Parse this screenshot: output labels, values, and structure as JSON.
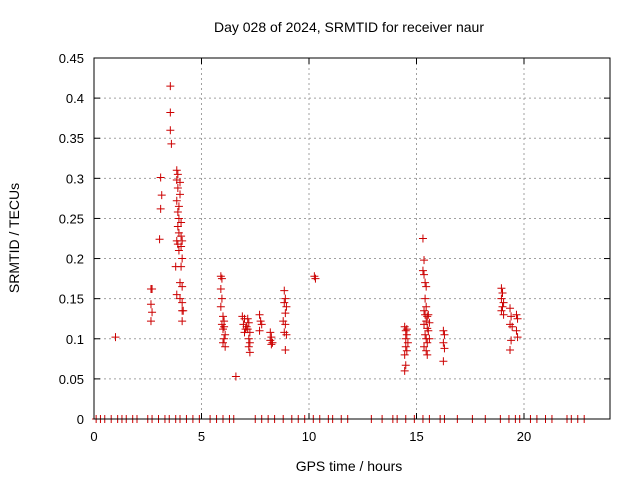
{
  "chart_data": {
    "type": "scatter",
    "title": "Day 028 of 2024, SRMTID for receiver naur",
    "xlabel": "GPS time / hours",
    "ylabel": "SRMTID / TECUs",
    "xlim": [
      0,
      24
    ],
    "ylim": [
      0,
      0.45
    ],
    "xticks": [
      0,
      5,
      10,
      15,
      20
    ],
    "yticks": [
      0,
      0.05,
      0.1,
      0.15,
      0.2,
      0.25,
      0.3,
      0.35,
      0.4,
      0.45
    ],
    "xtick_labels": [
      "0",
      "5",
      "10",
      "15",
      "20"
    ],
    "ytick_labels": [
      "0",
      "0.05",
      "0.1",
      "0.15",
      "0.2",
      "0.25",
      "0.3",
      "0.35",
      "0.4",
      "0.45"
    ],
    "grid": true,
    "marker": "+",
    "marker_color": "#cc0000",
    "series": [
      {
        "name": "SRMTID",
        "points": [
          [
            1.0,
            0.102
          ],
          [
            2.65,
            0.162
          ],
          [
            2.7,
            0.162
          ],
          [
            2.65,
            0.143
          ],
          [
            2.7,
            0.133
          ],
          [
            2.65,
            0.122
          ],
          [
            3.1,
            0.301
          ],
          [
            3.15,
            0.279
          ],
          [
            3.1,
            0.262
          ],
          [
            3.05,
            0.224
          ],
          [
            3.55,
            0.415
          ],
          [
            3.55,
            0.382
          ],
          [
            3.55,
            0.36
          ],
          [
            3.6,
            0.343
          ],
          [
            3.85,
            0.31
          ],
          [
            3.9,
            0.305
          ],
          [
            3.85,
            0.298
          ],
          [
            3.9,
            0.288
          ],
          [
            3.85,
            0.272
          ],
          [
            3.95,
            0.265
          ],
          [
            3.9,
            0.258
          ],
          [
            3.95,
            0.25
          ],
          [
            3.9,
            0.24
          ],
          [
            3.95,
            0.232
          ],
          [
            3.85,
            0.222
          ],
          [
            3.9,
            0.218
          ],
          [
            3.95,
            0.21
          ],
          [
            3.8,
            0.19
          ],
          [
            3.85,
            0.155
          ],
          [
            4.0,
            0.295
          ],
          [
            4.0,
            0.28
          ],
          [
            4.05,
            0.245
          ],
          [
            4.05,
            0.228
          ],
          [
            4.1,
            0.222
          ],
          [
            4.05,
            0.215
          ],
          [
            4.1,
            0.2
          ],
          [
            4.05,
            0.19
          ],
          [
            4.0,
            0.17
          ],
          [
            4.1,
            0.165
          ],
          [
            4.0,
            0.15
          ],
          [
            4.1,
            0.145
          ],
          [
            4.1,
            0.135
          ],
          [
            4.15,
            0.135
          ],
          [
            4.1,
            0.122
          ],
          [
            5.9,
            0.178
          ],
          [
            5.95,
            0.175
          ],
          [
            5.9,
            0.162
          ],
          [
            5.95,
            0.15
          ],
          [
            5.9,
            0.14
          ],
          [
            6.0,
            0.128
          ],
          [
            6.05,
            0.122
          ],
          [
            5.95,
            0.118
          ],
          [
            6.0,
            0.112
          ],
          [
            6.1,
            0.105
          ],
          [
            6.05,
            0.1
          ],
          [
            6.0,
            0.095
          ],
          [
            6.1,
            0.09
          ],
          [
            6.05,
            0.115
          ],
          [
            6.6,
            0.053
          ],
          [
            6.9,
            0.128
          ],
          [
            7.0,
            0.125
          ],
          [
            6.95,
            0.118
          ],
          [
            7.05,
            0.112
          ],
          [
            7.0,
            0.108
          ],
          [
            7.15,
            0.125
          ],
          [
            7.2,
            0.12
          ],
          [
            7.15,
            0.112
          ],
          [
            7.25,
            0.108
          ],
          [
            7.2,
            0.1
          ],
          [
            7.25,
            0.095
          ],
          [
            7.2,
            0.09
          ],
          [
            7.25,
            0.083
          ],
          [
            7.1,
            0.115
          ],
          [
            7.7,
            0.13
          ],
          [
            7.75,
            0.122
          ],
          [
            7.8,
            0.118
          ],
          [
            7.7,
            0.11
          ],
          [
            8.2,
            0.108
          ],
          [
            8.25,
            0.102
          ],
          [
            8.2,
            0.098
          ],
          [
            8.3,
            0.095
          ],
          [
            8.25,
            0.093
          ],
          [
            8.85,
            0.16
          ],
          [
            8.9,
            0.15
          ],
          [
            8.85,
            0.145
          ],
          [
            8.95,
            0.14
          ],
          [
            8.9,
            0.132
          ],
          [
            8.8,
            0.122
          ],
          [
            8.9,
            0.118
          ],
          [
            8.85,
            0.108
          ],
          [
            8.95,
            0.105
          ],
          [
            8.9,
            0.086
          ],
          [
            10.25,
            0.178
          ],
          [
            10.3,
            0.175
          ],
          [
            14.45,
            0.115
          ],
          [
            14.5,
            0.11
          ],
          [
            14.55,
            0.105
          ],
          [
            14.5,
            0.1
          ],
          [
            14.6,
            0.095
          ],
          [
            14.5,
            0.09
          ],
          [
            14.55,
            0.085
          ],
          [
            14.45,
            0.08
          ],
          [
            14.5,
            0.067
          ],
          [
            14.45,
            0.06
          ],
          [
            14.55,
            0.112
          ],
          [
            15.3,
            0.225
          ],
          [
            15.35,
            0.198
          ],
          [
            15.3,
            0.185
          ],
          [
            15.35,
            0.18
          ],
          [
            15.4,
            0.17
          ],
          [
            15.45,
            0.165
          ],
          [
            15.4,
            0.15
          ],
          [
            15.45,
            0.14
          ],
          [
            15.35,
            0.135
          ],
          [
            15.4,
            0.13
          ],
          [
            15.5,
            0.128
          ],
          [
            15.45,
            0.122
          ],
          [
            15.35,
            0.118
          ],
          [
            15.5,
            0.113
          ],
          [
            15.4,
            0.105
          ],
          [
            15.45,
            0.1
          ],
          [
            15.5,
            0.095
          ],
          [
            15.35,
            0.09
          ],
          [
            15.45,
            0.085
          ],
          [
            15.5,
            0.08
          ],
          [
            15.55,
            0.13
          ],
          [
            15.6,
            0.12
          ],
          [
            15.55,
            0.11
          ],
          [
            15.6,
            0.1
          ],
          [
            16.25,
            0.11
          ],
          [
            16.3,
            0.105
          ],
          [
            16.25,
            0.095
          ],
          [
            16.3,
            0.088
          ],
          [
            16.25,
            0.072
          ],
          [
            18.95,
            0.163
          ],
          [
            19.0,
            0.157
          ],
          [
            18.95,
            0.15
          ],
          [
            19.05,
            0.145
          ],
          [
            19.0,
            0.14
          ],
          [
            18.95,
            0.135
          ],
          [
            19.05,
            0.13
          ],
          [
            19.35,
            0.138
          ],
          [
            19.4,
            0.128
          ],
          [
            19.35,
            0.118
          ],
          [
            19.45,
            0.115
          ],
          [
            19.4,
            0.098
          ],
          [
            19.35,
            0.086
          ],
          [
            19.65,
            0.13
          ],
          [
            19.7,
            0.125
          ],
          [
            19.65,
            0.11
          ],
          [
            19.7,
            0.102
          ],
          [
            0.1,
            0
          ],
          [
            0.3,
            0
          ],
          [
            0.5,
            0
          ],
          [
            0.8,
            0
          ],
          [
            1.1,
            0
          ],
          [
            1.3,
            0
          ],
          [
            1.5,
            0
          ],
          [
            1.8,
            0
          ],
          [
            2.0,
            0
          ],
          [
            2.5,
            0
          ],
          [
            2.7,
            0
          ],
          [
            3.0,
            0
          ],
          [
            3.3,
            0
          ],
          [
            3.5,
            0
          ],
          [
            3.8,
            0
          ],
          [
            4.0,
            0
          ],
          [
            4.3,
            0
          ],
          [
            4.6,
            0
          ],
          [
            4.9,
            0
          ],
          [
            5.4,
            0
          ],
          [
            5.7,
            0
          ],
          [
            6.0,
            0
          ],
          [
            6.3,
            0
          ],
          [
            6.5,
            0
          ],
          [
            7.5,
            0
          ],
          [
            7.8,
            0
          ],
          [
            8.1,
            0
          ],
          [
            8.4,
            0
          ],
          [
            8.8,
            0
          ],
          [
            9.2,
            0
          ],
          [
            9.5,
            0
          ],
          [
            9.8,
            0
          ],
          [
            10.2,
            0
          ],
          [
            10.5,
            0
          ],
          [
            10.9,
            0
          ],
          [
            11.1,
            0
          ],
          [
            11.5,
            0
          ],
          [
            11.8,
            0
          ],
          [
            12.9,
            0
          ],
          [
            13.4,
            0
          ],
          [
            13.9,
            0
          ],
          [
            14.1,
            0
          ],
          [
            14.5,
            0
          ],
          [
            14.9,
            0
          ],
          [
            15.3,
            0
          ],
          [
            15.6,
            0
          ],
          [
            16.1,
            0
          ],
          [
            16.3,
            0
          ],
          [
            16.9,
            0
          ],
          [
            17.6,
            0
          ],
          [
            18.2,
            0
          ],
          [
            18.9,
            0
          ],
          [
            19.3,
            0
          ],
          [
            19.6,
            0
          ],
          [
            19.8,
            0
          ],
          [
            20.3,
            0
          ],
          [
            20.6,
            0
          ],
          [
            21.0,
            0
          ],
          [
            21.3,
            0
          ],
          [
            22.0,
            0
          ],
          [
            22.2,
            0
          ],
          [
            22.5,
            0
          ],
          [
            22.8,
            0
          ]
        ]
      }
    ]
  }
}
